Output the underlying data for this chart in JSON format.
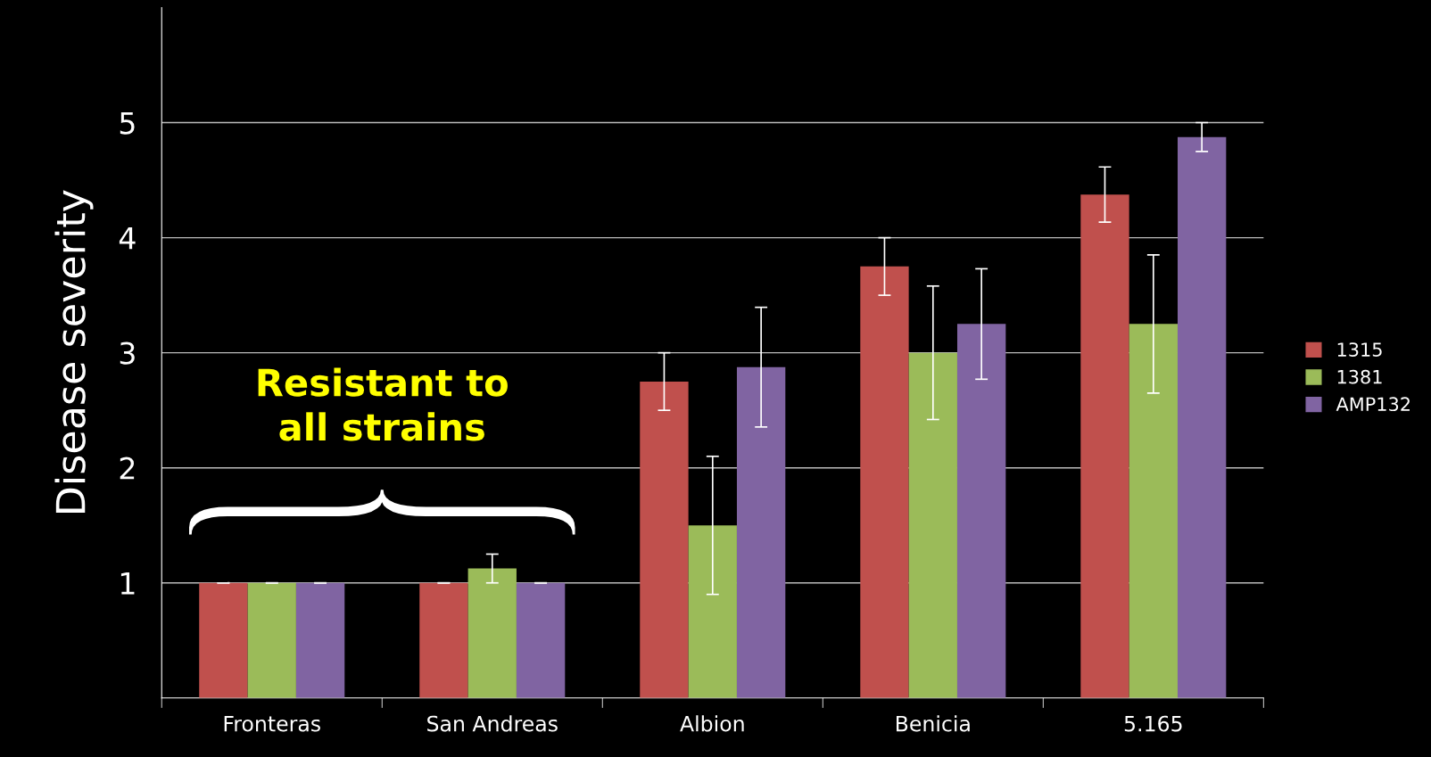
{
  "chart_data": {
    "type": "bar",
    "ylabel": "Disease severity",
    "categories": [
      "Fronteras",
      "San Andreas",
      "Albion",
      "Benicia",
      "5.165"
    ],
    "series": [
      {
        "name": "1315",
        "color": "#c0504d",
        "values": [
          1,
          1,
          2.75,
          3.75,
          4.375
        ],
        "errors": [
          0,
          0,
          0.25,
          0.25,
          0.24
        ]
      },
      {
        "name": "1381",
        "color": "#9bbb59",
        "values": [
          1,
          1.125,
          1.5,
          3,
          3.25
        ],
        "errors": [
          0,
          0.125,
          0.6,
          0.58,
          0.6
        ]
      },
      {
        "name": "AMP132",
        "color": "#8064a2",
        "values": [
          1,
          1,
          2.875,
          3.25,
          4.875
        ],
        "errors": [
          0,
          0,
          0.52,
          0.48,
          0.125
        ]
      }
    ],
    "ylim": [
      0,
      6
    ],
    "yticks": [
      1,
      2,
      3,
      4,
      5
    ],
    "grid": "y",
    "legend": "right",
    "annotations": [
      "Resistant to all strains"
    ]
  }
}
